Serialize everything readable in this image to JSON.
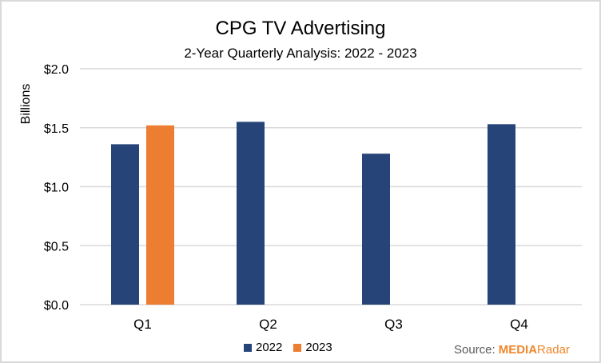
{
  "chart_data": {
    "type": "bar",
    "title": "CPG TV Advertising",
    "subtitle": "2-Year Quarterly Analysis: 2022 - 2023",
    "xlabel": "",
    "ylabel": "Billions",
    "categories": [
      "Q1",
      "Q2",
      "Q3",
      "Q4"
    ],
    "series": [
      {
        "name": "2022",
        "color": "#264478",
        "values": [
          1.36,
          1.55,
          1.28,
          1.53
        ]
      },
      {
        "name": "2023",
        "color": "#ed7d31",
        "values": [
          1.52,
          null,
          null,
          null
        ]
      }
    ],
    "ylim": [
      0,
      2.0
    ],
    "yticks": [
      0.0,
      0.5,
      1.0,
      1.5,
      2.0
    ],
    "ytick_labels": [
      "$0.0",
      "$0.5",
      "$1.0",
      "$1.5",
      "$2.0"
    ],
    "grid": true,
    "legend": "bottom-center"
  },
  "source": {
    "prefix": "Source:",
    "brand_part1": "MEDIA",
    "brand_part2": "Radar"
  },
  "colors": {
    "gridline": "#d9d9d9",
    "brand": "#f0862a"
  }
}
